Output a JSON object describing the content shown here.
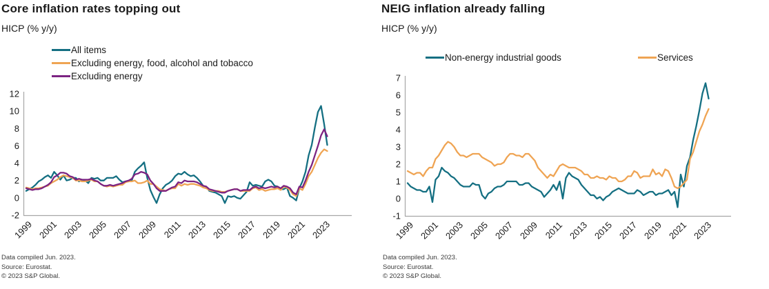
{
  "page": {
    "background": "#ffffff",
    "accent_teal": "#146f82",
    "accent_orange": "#efa453",
    "accent_purple": "#7c2382",
    "axis_color": "#a6a6a6"
  },
  "chart_data": [
    {
      "type": "line",
      "title": "Core inflation rates topping out",
      "subtitle": "HICP (% y/y)",
      "grid": false,
      "legend_position": "top-left-vertical",
      "x_axis": {
        "start_year": 1999,
        "step_years": 0.25,
        "tick_interval_years": 2,
        "tick_labels": [
          "1999",
          "2001",
          "2003",
          "2005",
          "2007",
          "2009",
          "2011",
          "2013",
          "2015",
          "2017",
          "2019",
          "2021",
          "2023"
        ]
      },
      "y_axis": {
        "min": -2,
        "max": 12,
        "tick_step": 2
      },
      "series": [
        {
          "name": "All items",
          "color": "#146f82",
          "values": [
            0.8,
            1.0,
            1.2,
            1.5,
            1.9,
            2.1,
            2.4,
            2.6,
            2.3,
            3.0,
            2.6,
            2.1,
            2.6,
            2.0,
            2.1,
            2.3,
            2.3,
            1.9,
            2.1,
            2.0,
            1.7,
            2.3,
            2.2,
            2.3,
            2.0,
            2.0,
            2.3,
            2.3,
            2.3,
            2.5,
            2.1,
            1.8,
            1.9,
            1.9,
            2.0,
            3.0,
            3.4,
            3.7,
            4.1,
            2.3,
            0.9,
            0.1,
            -0.6,
            0.4,
            1.1,
            1.5,
            1.7,
            2.0,
            2.5,
            2.8,
            2.7,
            3.0,
            2.7,
            2.5,
            2.6,
            2.3,
            1.9,
            1.4,
            1.3,
            0.8,
            0.7,
            0.6,
            0.4,
            0.2,
            -0.6,
            0.2,
            0.1,
            0.2,
            0.0,
            -0.1,
            0.3,
            0.7,
            1.8,
            1.4,
            1.5,
            1.4,
            1.3,
            1.9,
            2.1,
            1.9,
            1.4,
            1.3,
            1.0,
            1.0,
            1.2,
            0.2,
            0.0,
            -0.3,
            1.1,
            1.9,
            3.0,
            4.9,
            6.1,
            8.1,
            9.9,
            10.6,
            8.5,
            6.1
          ]
        },
        {
          "name": "Excluding energy, food, alcohol and tobacco",
          "color": "#efa453",
          "values": [
            1.2,
            1.1,
            1.0,
            1.1,
            1.1,
            1.2,
            1.3,
            1.4,
            1.7,
            1.9,
            2.1,
            2.4,
            2.6,
            2.5,
            2.4,
            2.3,
            2.0,
            2.0,
            1.9,
            1.9,
            2.0,
            2.1,
            1.9,
            1.9,
            1.6,
            1.4,
            1.3,
            1.4,
            1.3,
            1.4,
            1.5,
            1.5,
            1.8,
            1.9,
            1.9,
            2.0,
            1.7,
            1.7,
            1.8,
            2.0,
            1.6,
            1.6,
            1.3,
            1.0,
            0.9,
            0.8,
            1.0,
            1.1,
            1.1,
            1.6,
            1.4,
            1.6,
            1.5,
            1.6,
            1.6,
            1.5,
            1.4,
            1.2,
            1.1,
            0.9,
            0.8,
            0.8,
            0.8,
            0.7,
            0.7,
            0.8,
            0.9,
            1.0,
            1.0,
            0.8,
            0.8,
            0.8,
            0.8,
            1.1,
            1.2,
            0.9,
            1.0,
            0.8,
            0.9,
            1.0,
            1.0,
            1.1,
            0.9,
            1.3,
            1.2,
            0.9,
            0.4,
            0.2,
            1.1,
            0.9,
            1.6,
            2.5,
            3.0,
            3.8,
            4.6,
            5.2,
            5.6,
            5.4
          ]
        },
        {
          "name": "Excluding energy",
          "color": "#7c2382",
          "values": [
            1.1,
            1.0,
            0.9,
            1.0,
            1.0,
            1.1,
            1.3,
            1.5,
            1.8,
            2.4,
            2.6,
            2.9,
            2.9,
            2.8,
            2.5,
            2.4,
            2.1,
            2.2,
            2.1,
            2.1,
            2.1,
            2.2,
            2.0,
            1.9,
            1.6,
            1.4,
            1.4,
            1.5,
            1.4,
            1.5,
            1.6,
            1.7,
            1.9,
            2.0,
            2.2,
            2.7,
            2.8,
            3.0,
            2.9,
            2.7,
            2.0,
            1.6,
            1.1,
            0.8,
            0.8,
            0.8,
            1.0,
            1.2,
            1.3,
            1.8,
            1.7,
            2.0,
            1.9,
            1.9,
            1.9,
            1.8,
            1.6,
            1.4,
            1.3,
            1.0,
            0.9,
            0.8,
            0.7,
            0.6,
            0.6,
            0.8,
            0.9,
            1.0,
            1.0,
            0.8,
            0.9,
            0.9,
            0.9,
            1.2,
            1.3,
            1.1,
            1.2,
            1.1,
            1.2,
            1.3,
            1.2,
            1.3,
            1.1,
            1.4,
            1.3,
            1.1,
            0.6,
            0.4,
            1.3,
            1.2,
            2.0,
            3.0,
            3.8,
            4.9,
            6.0,
            7.2,
            7.9,
            7.1
          ]
        }
      ],
      "footer": [
        "Data compiled Jun. 2023.",
        "Source: Eurostat.",
        "© 2023 S&P Global."
      ]
    },
    {
      "type": "line",
      "title": "NEIG inflation already falling",
      "subtitle": "HICP (% y/y)",
      "grid": false,
      "legend_position": "top-horizontal",
      "x_axis": {
        "start_year": 1999,
        "step_years": 0.25,
        "tick_interval_years": 2,
        "tick_labels": [
          "1999",
          "2001",
          "2003",
          "2005",
          "2007",
          "2009",
          "2011",
          "2013",
          "2015",
          "2017",
          "2019",
          "2021",
          "2023"
        ]
      },
      "y_axis": {
        "min": -1,
        "max": 7,
        "tick_step": 1
      },
      "series": [
        {
          "name": "Non-energy industrial goods",
          "color": "#146f82",
          "values": [
            0.9,
            0.7,
            0.6,
            0.5,
            0.5,
            0.4,
            0.4,
            0.7,
            -0.2,
            1.1,
            1.3,
            1.8,
            1.6,
            1.5,
            1.3,
            1.2,
            1.0,
            0.8,
            0.7,
            0.7,
            0.7,
            0.9,
            0.8,
            0.8,
            0.2,
            0.0,
            0.3,
            0.4,
            0.6,
            0.7,
            0.7,
            0.8,
            1.0,
            1.0,
            1.0,
            1.0,
            0.8,
            0.8,
            0.9,
            0.9,
            0.7,
            0.6,
            0.5,
            0.4,
            0.1,
            0.3,
            0.5,
            0.8,
            0.5,
            1.0,
            0.0,
            1.2,
            1.5,
            1.3,
            1.2,
            1.1,
            0.8,
            0.6,
            0.4,
            0.2,
            0.2,
            0.0,
            0.1,
            -0.1,
            0.1,
            0.2,
            0.4,
            0.5,
            0.6,
            0.5,
            0.4,
            0.3,
            0.3,
            0.3,
            0.5,
            0.4,
            0.2,
            0.3,
            0.4,
            0.4,
            0.2,
            0.3,
            0.3,
            0.4,
            0.5,
            0.2,
            0.4,
            -0.5,
            1.4,
            0.7,
            1.9,
            2.4,
            3.4,
            4.2,
            5.1,
            6.1,
            6.7,
            5.8
          ]
        },
        {
          "name": "Services",
          "color": "#efa453",
          "values": [
            1.6,
            1.5,
            1.4,
            1.5,
            1.5,
            1.3,
            1.6,
            1.8,
            1.8,
            2.3,
            2.5,
            2.8,
            3.1,
            3.3,
            3.2,
            3.0,
            2.7,
            2.5,
            2.5,
            2.4,
            2.5,
            2.6,
            2.6,
            2.6,
            2.4,
            2.3,
            2.2,
            2.1,
            1.9,
            2.0,
            2.0,
            2.1,
            2.4,
            2.6,
            2.6,
            2.5,
            2.5,
            2.4,
            2.6,
            2.6,
            2.4,
            2.2,
            1.8,
            1.6,
            1.4,
            1.2,
            1.4,
            1.3,
            1.6,
            1.9,
            2.0,
            1.9,
            1.8,
            1.8,
            1.8,
            1.7,
            1.6,
            1.4,
            1.4,
            1.2,
            1.2,
            1.3,
            1.2,
            1.2,
            1.1,
            1.3,
            1.2,
            1.2,
            1.0,
            1.0,
            1.1,
            1.3,
            1.3,
            1.6,
            1.5,
            1.2,
            1.3,
            1.3,
            1.3,
            1.7,
            1.4,
            1.5,
            1.3,
            1.7,
            1.6,
            1.2,
            0.7,
            0.6,
            0.7,
            0.9,
            1.1,
            2.3,
            2.7,
            3.3,
            3.9,
            4.3,
            4.8,
            5.2
          ]
        }
      ],
      "footer": [
        "Data compiled Jun. 2023.",
        "Source: Eurostat.",
        "© 2023 S&P Global."
      ]
    }
  ]
}
